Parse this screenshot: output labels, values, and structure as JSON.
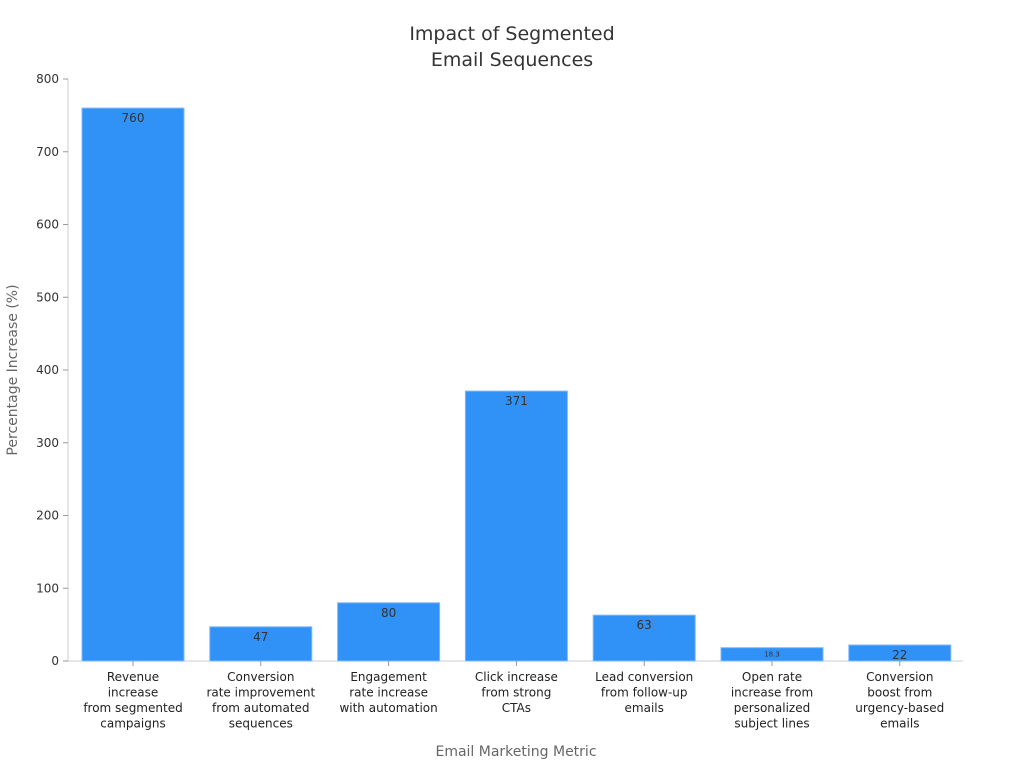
{
  "chart_data": {
    "type": "bar",
    "title": [
      "Impact of Segmented",
      "Email Sequences"
    ],
    "xlabel": "Email Marketing Metric",
    "ylabel": "Percentage Increase (%)",
    "ylim": [
      0,
      800
    ],
    "yticks": [
      0,
      100,
      200,
      300,
      400,
      500,
      600,
      700,
      800
    ],
    "categories": [
      [
        "Revenue",
        "increase",
        "from segmented",
        "campaigns"
      ],
      [
        "Conversion",
        "rate improvement",
        "from automated",
        "sequences"
      ],
      [
        "Engagement",
        "rate increase",
        "with automation"
      ],
      [
        "Click increase",
        "from strong",
        "CTAs"
      ],
      [
        "Lead conversion",
        "from follow-up",
        "emails"
      ],
      [
        "Open rate",
        "increase from",
        "personalized",
        "subject lines"
      ],
      [
        "Conversion",
        "boost from",
        "urgency-based",
        "emails"
      ]
    ],
    "values": [
      760,
      47,
      80,
      371,
      63,
      18.3,
      22
    ],
    "labels": [
      "760",
      "47",
      "80",
      "371",
      "63",
      "18.3",
      "22"
    ],
    "bar_color": "#3091f7",
    "grid": false
  }
}
